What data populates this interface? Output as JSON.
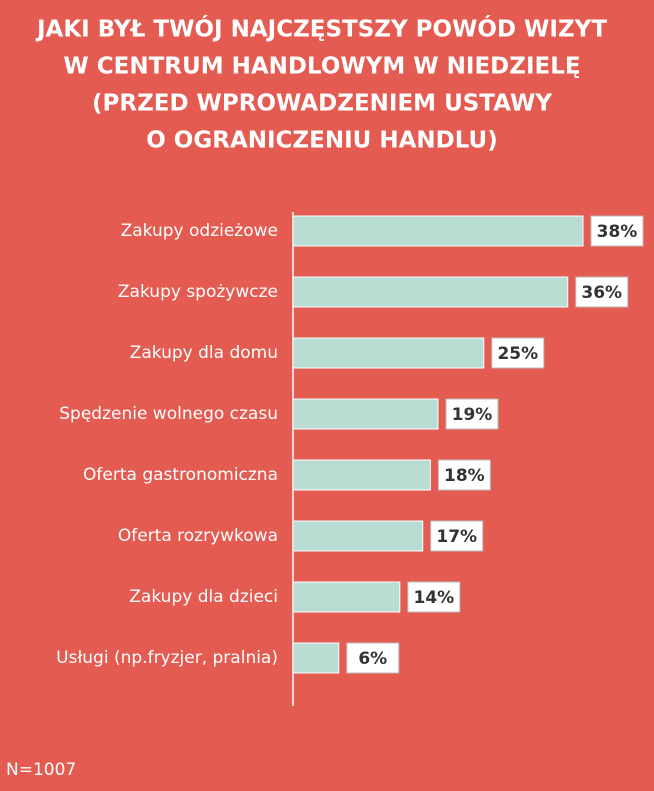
{
  "chart_data": {
    "type": "bar",
    "orientation": "horizontal",
    "title": [
      "JAKI BYŁ TWÓJ NAJCZĘSTSZY POWÓD WIZYT",
      "W CENTRUM HANDLOWYM W NIEDZIELĘ",
      "(PRZED WPROWADZENIEM USTAWY",
      "O OGRANICZENIU HANDLU)"
    ],
    "categories": [
      "Zakupy odzieżowe",
      "Zakupy spożywcze",
      "Zakupy dla domu",
      "Spędzenie wolnego czasu",
      "Oferta gastronomiczna",
      "Oferta rozrywkowa",
      "Zakupy dla dzieci",
      "Usługi (np.fryzjer, pralnia)"
    ],
    "values": [
      38,
      36,
      25,
      19,
      18,
      17,
      14,
      6
    ],
    "value_labels": [
      "38%",
      "36%",
      "25%",
      "19%",
      "18%",
      "17%",
      "14%",
      "6%"
    ],
    "color": "#b9ddd3",
    "note": "N=1007"
  }
}
